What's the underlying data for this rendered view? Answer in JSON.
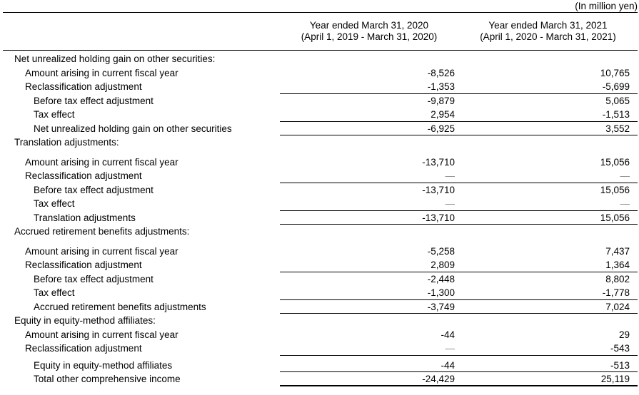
{
  "unit_note": "(In million yen)",
  "columns": [
    {
      "line1": "Year ended March 31, 2020",
      "line2": "(April 1, 2019 - March 31, 2020)"
    },
    {
      "line1": "Year ended March 31, 2021",
      "line2": "(April 1, 2020 - March 31, 2021)"
    }
  ],
  "table": {
    "rows": [
      {
        "label": "Net unrealized holding gain on other securities:",
        "v2020": "",
        "v2021": ""
      },
      {
        "label": "Amount arising in current fiscal year",
        "v2020": "-8,526",
        "v2021": "10,765"
      },
      {
        "label": "Reclassification adjustment",
        "v2020": "-1,353",
        "v2021": "-5,699"
      },
      {
        "label": "Before tax effect adjustment",
        "v2020": "-9,879",
        "v2021": "5,065"
      },
      {
        "label": "Tax effect",
        "v2020": "2,954",
        "v2021": "-1,513"
      },
      {
        "label": "Net unrealized holding gain on other securities",
        "v2020": "-6,925",
        "v2021": "3,552"
      },
      {
        "label": "Translation adjustments:",
        "v2020": "",
        "v2021": ""
      },
      {
        "label": "Amount arising in current fiscal year",
        "v2020": "-13,710",
        "v2021": "15,056"
      },
      {
        "label": "Reclassification adjustment",
        "v2020": "—",
        "v2021": "—"
      },
      {
        "label": "Before tax effect adjustment",
        "v2020": "-13,710",
        "v2021": "15,056"
      },
      {
        "label": "Tax effect",
        "v2020": "—",
        "v2021": "—"
      },
      {
        "label": "Translation adjustments",
        "v2020": "-13,710",
        "v2021": "15,056"
      },
      {
        "label": "Accrued retirement benefits adjustments:",
        "v2020": "",
        "v2021": ""
      },
      {
        "label": "Amount arising in current fiscal year",
        "v2020": "-5,258",
        "v2021": "7,437"
      },
      {
        "label": "Reclassification adjustment",
        "v2020": "2,809",
        "v2021": "1,364"
      },
      {
        "label": "Before tax effect adjustment",
        "v2020": "-2,448",
        "v2021": "8,802"
      },
      {
        "label": "Tax effect",
        "v2020": "-1,300",
        "v2021": "-1,778"
      },
      {
        "label": "Accrued retirement benefits adjustments",
        "v2020": "-3,749",
        "v2021": "7,024"
      },
      {
        "label": "Equity in equity-method affiliates:",
        "v2020": "",
        "v2021": ""
      },
      {
        "label": "Amount arising in current fiscal year",
        "v2020": "-44",
        "v2021": "29"
      },
      {
        "label": "Reclassification adjustment",
        "v2020": "—",
        "v2021": "-543"
      },
      {
        "label": "Equity in equity-method affiliates",
        "v2020": "-44",
        "v2021": "-513"
      },
      {
        "label": "Total other comprehensive income",
        "v2020": "-24,429",
        "v2021": "25,119"
      }
    ]
  }
}
